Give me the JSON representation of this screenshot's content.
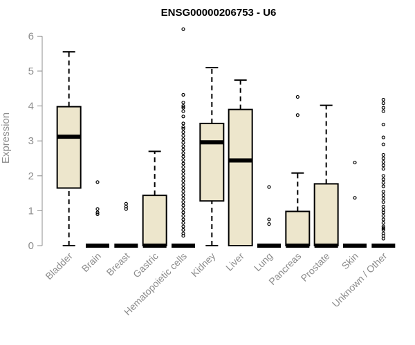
{
  "chart_data": {
    "type": "boxplot",
    "title": "ENSG00000206753 - U6",
    "xlabel": "",
    "ylabel": "Expression",
    "ylim": [
      0,
      6.2
    ],
    "yticks": [
      "0",
      "1",
      "2",
      "3",
      "4",
      "5",
      "6"
    ],
    "grid": false,
    "colors": {
      "box_fill": "#ede6cc",
      "box_stroke": "#000000",
      "axis": "#8c8c8c"
    },
    "categories": [
      "Bladder",
      "Brain",
      "Breast",
      "Gastric",
      "Hematopoietic cells",
      "Kidney",
      "Liver",
      "Lung",
      "Pancreas",
      "Prostate",
      "Skin",
      "Unknown / Other"
    ],
    "boxes": [
      {
        "whisker_low": 0,
        "q1": 1.65,
        "median": 3.12,
        "q3": 3.98,
        "whisker_high": 5.55,
        "outliers": []
      },
      {
        "whisker_low": 0,
        "q1": 0,
        "median": 0,
        "q3": 0,
        "whisker_high": 0,
        "outliers": [
          1.82,
          1.05,
          0.95,
          0.9
        ]
      },
      {
        "whisker_low": 0,
        "q1": 0,
        "median": 0,
        "q3": 0,
        "whisker_high": 0,
        "outliers": [
          1.2,
          1.12,
          1.05
        ]
      },
      {
        "whisker_low": 0,
        "q1": 0,
        "median": 0,
        "q3": 1.44,
        "whisker_high": 2.7,
        "outliers": []
      },
      {
        "whisker_low": 0,
        "q1": 0,
        "median": 0,
        "q3": 0,
        "whisker_high": 0,
        "outliers": [
          6.2,
          4.32,
          4.1,
          4.0,
          3.95,
          3.85,
          3.7,
          3.5,
          3.4,
          3.35,
          3.25,
          3.15,
          3.05,
          2.95,
          2.85,
          2.75,
          2.65,
          2.55,
          2.45,
          2.35,
          2.25,
          2.15,
          2.05,
          1.95,
          1.85,
          1.75,
          1.65,
          1.55,
          1.45,
          1.35,
          1.25,
          1.15,
          1.05,
          0.95,
          0.85,
          0.75,
          0.65,
          0.55,
          0.45,
          0.35,
          0.28
        ]
      },
      {
        "whisker_low": 0,
        "q1": 1.28,
        "median": 2.96,
        "q3": 3.5,
        "whisker_high": 5.1,
        "outliers": []
      },
      {
        "whisker_low": 0,
        "q1": 0,
        "median": 2.44,
        "q3": 3.9,
        "whisker_high": 4.74,
        "outliers": []
      },
      {
        "whisker_low": 0,
        "q1": 0,
        "median": 0,
        "q3": 0,
        "whisker_high": 0,
        "outliers": [
          1.68,
          0.75,
          0.62
        ]
      },
      {
        "whisker_low": 0,
        "q1": 0,
        "median": 0,
        "q3": 0.98,
        "whisker_high": 2.08,
        "outliers": [
          4.26,
          3.74
        ]
      },
      {
        "whisker_low": 0,
        "q1": 0,
        "median": 0,
        "q3": 1.77,
        "whisker_high": 4.02,
        "outliers": []
      },
      {
        "whisker_low": 0,
        "q1": 0,
        "median": 0,
        "q3": 0,
        "whisker_high": 0,
        "outliers": [
          2.38,
          1.37
        ]
      },
      {
        "whisker_low": 0,
        "q1": 0,
        "median": 0,
        "q3": 0,
        "whisker_high": 0,
        "outliers": [
          4.18,
          4.08,
          3.95,
          3.85,
          3.47,
          3.1,
          2.9,
          2.6,
          2.5,
          2.4,
          2.3,
          2.2,
          2.0,
          1.9,
          1.8,
          1.7,
          1.55,
          1.45,
          1.35,
          1.25,
          1.12,
          1.02,
          0.95,
          0.85,
          0.75,
          0.65,
          0.55,
          0.5,
          0.45,
          0.35,
          0.28,
          0.2
        ]
      }
    ]
  }
}
